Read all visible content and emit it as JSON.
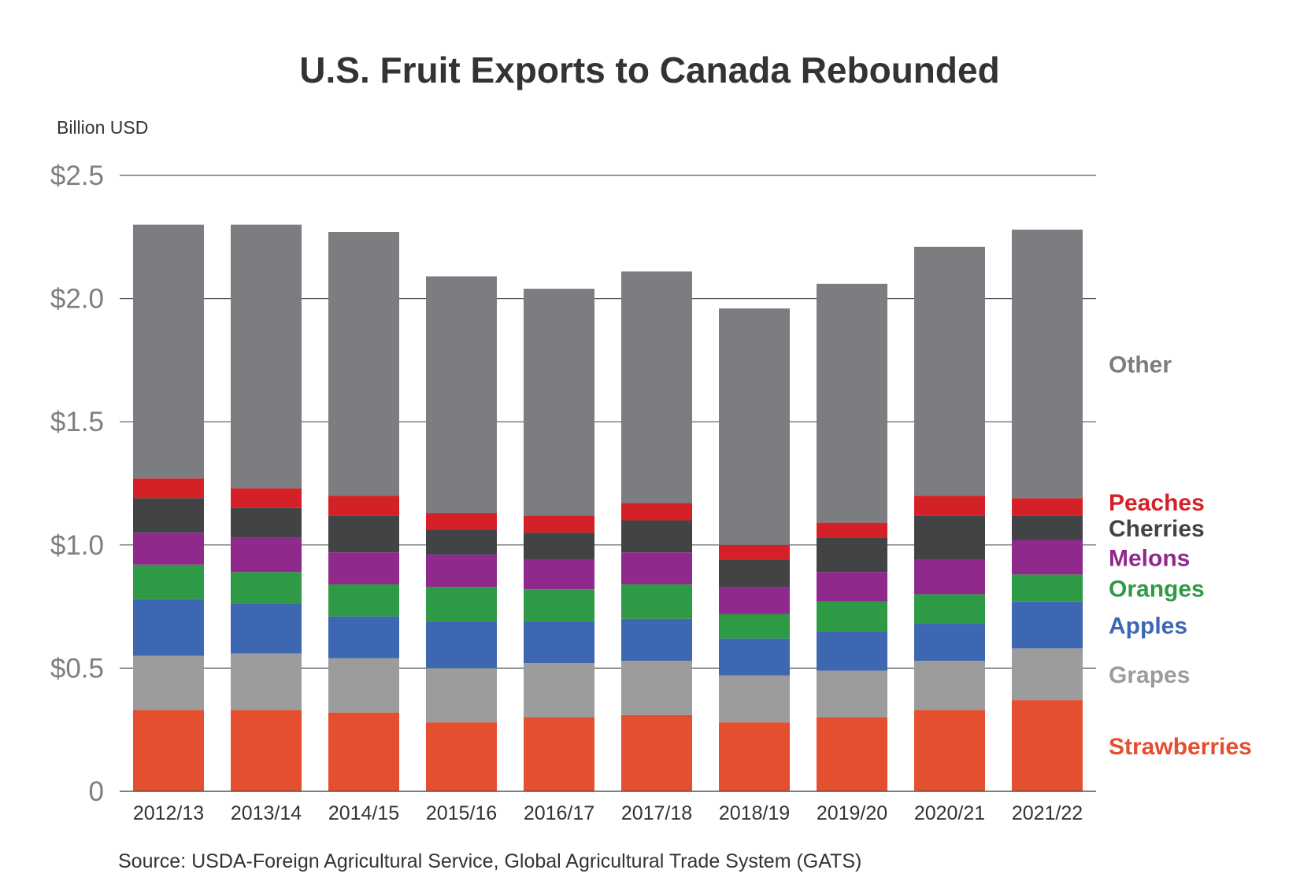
{
  "chart_data": {
    "type": "bar",
    "stacked": true,
    "title": "U.S. Fruit Exports to Canada Rebounded",
    "ylabel": "Billion USD",
    "xlabel": "",
    "ylim": [
      0,
      2.5
    ],
    "yticks": [
      0,
      0.5,
      1.0,
      1.5,
      2.0,
      2.5
    ],
    "ytick_labels": [
      "0",
      "$0.5",
      "$1.0",
      "$1.5",
      "$2.0",
      "$2.5"
    ],
    "grid": true,
    "legend_placement": "right",
    "categories": [
      "2012/13",
      "2013/14",
      "2014/15",
      "2015/16",
      "2016/17",
      "2017/18",
      "2018/19",
      "2019/20",
      "2020/21",
      "2021/22"
    ],
    "series": [
      {
        "name": "Strawberries",
        "color": "#e34f2f",
        "values": [
          0.33,
          0.33,
          0.32,
          0.28,
          0.3,
          0.31,
          0.28,
          0.3,
          0.33,
          0.37
        ]
      },
      {
        "name": "Grapes",
        "color": "#9c9c9c",
        "values": [
          0.22,
          0.23,
          0.22,
          0.22,
          0.22,
          0.22,
          0.19,
          0.19,
          0.2,
          0.21
        ]
      },
      {
        "name": "Apples",
        "color": "#3d67b1",
        "values": [
          0.23,
          0.2,
          0.17,
          0.19,
          0.17,
          0.17,
          0.15,
          0.16,
          0.15,
          0.19
        ]
      },
      {
        "name": "Oranges",
        "color": "#2f9a45",
        "values": [
          0.14,
          0.13,
          0.13,
          0.14,
          0.13,
          0.14,
          0.1,
          0.12,
          0.12,
          0.11
        ]
      },
      {
        "name": "Melons",
        "color": "#8f2a8c",
        "values": [
          0.13,
          0.14,
          0.13,
          0.13,
          0.12,
          0.13,
          0.11,
          0.12,
          0.14,
          0.14
        ]
      },
      {
        "name": "Cherries",
        "color": "#424345",
        "values": [
          0.14,
          0.12,
          0.15,
          0.1,
          0.11,
          0.13,
          0.11,
          0.14,
          0.18,
          0.1
        ]
      },
      {
        "name": "Peaches",
        "color": "#d42027",
        "values": [
          0.08,
          0.08,
          0.08,
          0.07,
          0.07,
          0.07,
          0.06,
          0.06,
          0.08,
          0.07
        ]
      },
      {
        "name": "Other",
        "color": "#7c7d81",
        "values": [
          1.03,
          1.07,
          1.07,
          0.96,
          0.92,
          0.94,
          0.96,
          0.97,
          1.01,
          1.09
        ]
      }
    ],
    "legend": [
      {
        "name": "Other",
        "color": "#7c7d81"
      },
      {
        "name": "Peaches",
        "color": "#d42027"
      },
      {
        "name": "Cherries",
        "color": "#424345"
      },
      {
        "name": "Melons",
        "color": "#8f2a8c"
      },
      {
        "name": "Oranges",
        "color": "#2f9a45"
      },
      {
        "name": "Apples",
        "color": "#3d67b1"
      },
      {
        "name": "Grapes",
        "color": "#9c9c9c"
      },
      {
        "name": "Strawberries",
        "color": "#e34f2f"
      }
    ],
    "source": "Source: USDA-Foreign Agricultural Service, Global Agricultural Trade System (GATS)"
  }
}
